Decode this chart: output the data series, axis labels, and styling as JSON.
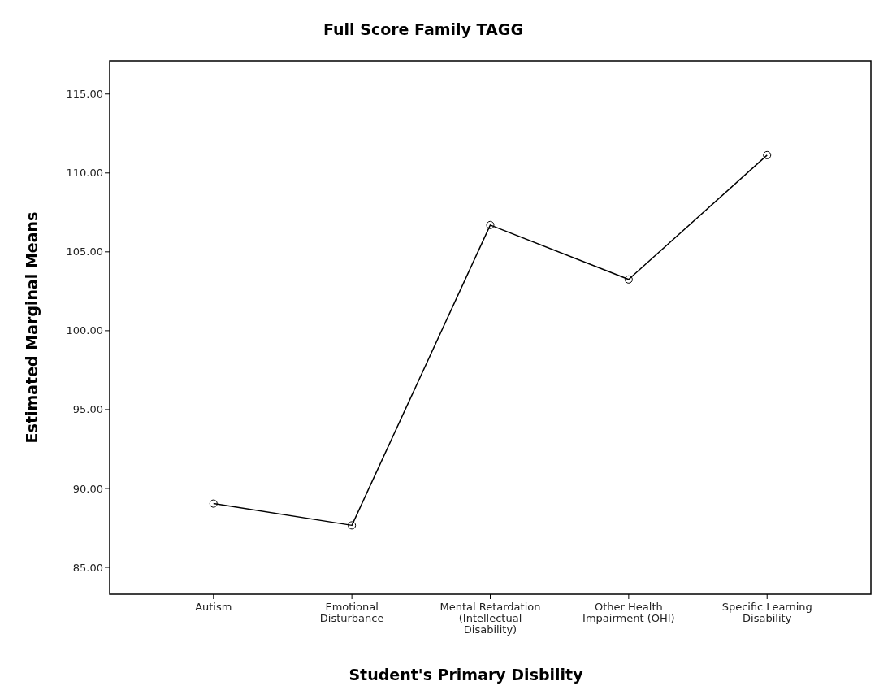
{
  "chart_data": {
    "type": "line",
    "title": "Full Score Family TAGG",
    "xlabel": "Student's Primary Disbility",
    "ylabel": "Estimated Marginal Means",
    "categories": [
      "Autism",
      "Emotional Disturbance",
      "Mental Retardation (Intellectual Disability)",
      "Other Health Impairment (OHI)",
      "Specific Learning Disability"
    ],
    "series": [
      {
        "color": "#000000",
        "values": [
          89.04,
          87.66,
          106.7,
          103.25,
          111.13
        ]
      }
    ],
    "ylim": [
      83.3,
      117.1
    ],
    "yticks": [
      {
        "value": 85,
        "label": "85.00"
      },
      {
        "value": 90,
        "label": "90.00"
      },
      {
        "value": 95,
        "label": "95.00"
      },
      {
        "value": 100,
        "label": "100.00"
      },
      {
        "value": 105,
        "label": "105.00"
      },
      {
        "value": 110,
        "label": "110.00"
      },
      {
        "value": 115,
        "label": "115.00"
      }
    ],
    "marker": "circle",
    "grid": false
  }
}
